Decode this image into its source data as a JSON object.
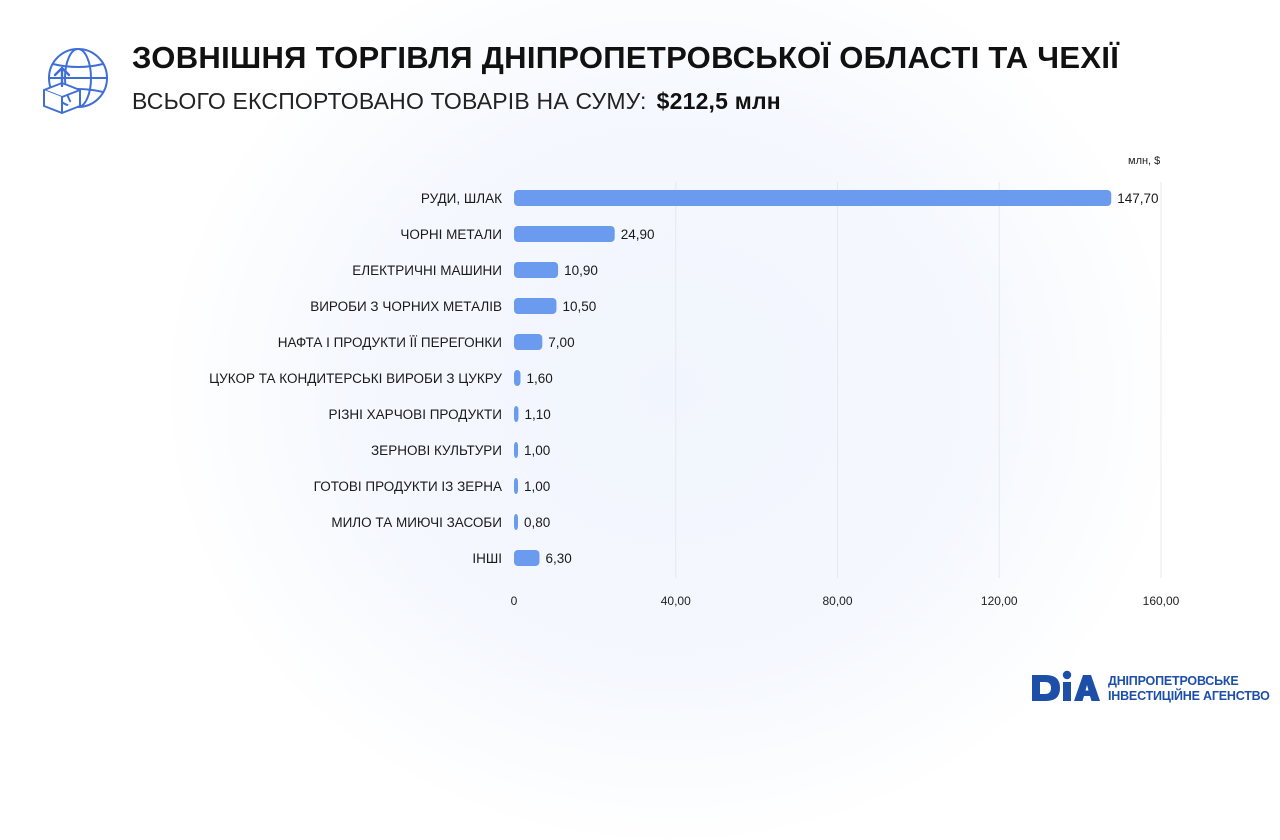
{
  "header": {
    "title": "ЗОВНІШНЯ ТОРГІВЛЯ ДНІПРОПЕТРОВСЬКОЇ ОБЛАСТІ ТА ЧЕХІЇ",
    "subtitle": "ВСЬОГО ЕКСПОРТОВАНО ТОВАРІВ НА СУМУ:",
    "amount": "$212,5 млн",
    "icon": "globe-box-export-icon"
  },
  "colors": {
    "bar": "#6b9bef",
    "grid": "#e6e9f0",
    "logo": "#1d4fa8"
  },
  "logo": {
    "mark": "DIA",
    "line1": "ДНІПРОПЕТРОВСЬКЕ",
    "line2": "ІНВЕСТИЦІЙНЕ АГЕНСТВО"
  },
  "chart_data": {
    "type": "bar",
    "orientation": "horizontal",
    "unit_label": "млн, $",
    "categories": [
      "РУДИ, ШЛАК",
      "ЧОРНІ МЕТАЛИ",
      "ЕЛЕКТРИЧНІ МАШИНИ",
      "ВИРОБИ З ЧОРНИХ МЕТАЛІВ",
      "НАФТА І ПРОДУКТИ ЇЇ ПЕРЕГОНКИ",
      "ЦУКОР ТА КОНДИТЕРСЬКІ ВИРОБИ З ЦУКРУ",
      "РІЗНІ ХАРЧОВІ ПРОДУКТИ",
      "ЗЕРНОВІ КУЛЬТУРИ",
      "ГОТОВІ ПРОДУКТИ ІЗ ЗЕРНА",
      "МИЛО ТА МИЮЧІ ЗАСОБИ",
      "ІНШІ"
    ],
    "values": [
      147.7,
      24.9,
      10.9,
      10.5,
      7.0,
      1.6,
      1.1,
      1.0,
      1.0,
      0.8,
      6.3
    ],
    "value_labels": [
      "147,70",
      "24,90",
      "10,90",
      "10,50",
      "7,00",
      "1,60",
      "1,10",
      "1,00",
      "1,00",
      "0,80",
      "6,30"
    ],
    "xlim": [
      0,
      160
    ],
    "xticks": [
      0,
      40,
      80,
      120,
      160
    ],
    "xtick_labels": [
      "0",
      "40,00",
      "80,00",
      "120,00",
      "160,00"
    ],
    "grid": "vertical"
  }
}
